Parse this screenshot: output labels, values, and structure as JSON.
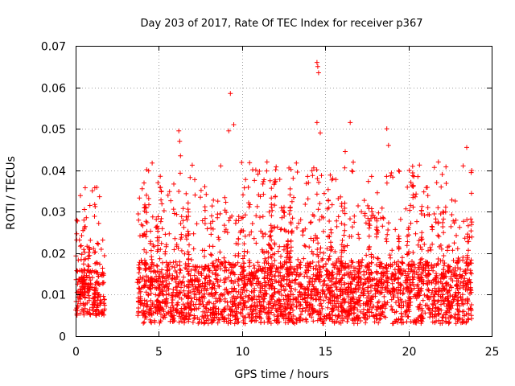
{
  "chart_data": {
    "type": "scatter",
    "title": "Day 203 of 2017, Rate Of TEC Index for receiver p367",
    "xlabel": "GPS time / hours",
    "ylabel": "ROTI / TECUs",
    "xlim": [
      0,
      25
    ],
    "ylim": [
      0,
      0.07
    ],
    "x_ticks": [
      0,
      5,
      10,
      15,
      20,
      25
    ],
    "x_tick_labels": [
      "0",
      "5",
      "10",
      "15",
      "20",
      "25"
    ],
    "y_ticks": [
      0,
      0.01,
      0.02,
      0.03,
      0.04,
      0.05,
      0.06,
      0.07
    ],
    "y_tick_labels": [
      "0",
      "0.01",
      "0.02",
      "0.03",
      "0.04",
      "0.05",
      "0.06",
      "0.07"
    ],
    "grid": true,
    "marker": "plus",
    "color": "#ff0000",
    "series": [
      {
        "segments": [
          {
            "x_start": 0.0,
            "x_end": 1.75,
            "typical_min": 0.005,
            "typical_max": 0.025,
            "peak": 0.037
          },
          {
            "x_start": 3.7,
            "x_end": 23.8,
            "typical_min": 0.003,
            "typical_max": 0.03,
            "peak": 0.042
          }
        ],
        "outliers": [
          {
            "x": 6.2,
            "y": 0.0495
          },
          {
            "x": 6.25,
            "y": 0.047
          },
          {
            "x": 6.3,
            "y": 0.0435
          },
          {
            "x": 9.3,
            "y": 0.0585
          },
          {
            "x": 9.2,
            "y": 0.0495
          },
          {
            "x": 9.5,
            "y": 0.051
          },
          {
            "x": 14.5,
            "y": 0.066
          },
          {
            "x": 14.55,
            "y": 0.065
          },
          {
            "x": 14.6,
            "y": 0.0635
          },
          {
            "x": 14.5,
            "y": 0.0515
          },
          {
            "x": 14.7,
            "y": 0.049
          },
          {
            "x": 16.5,
            "y": 0.0515
          },
          {
            "x": 18.7,
            "y": 0.05
          },
          {
            "x": 18.8,
            "y": 0.046
          },
          {
            "x": 23.5,
            "y": 0.0455
          },
          {
            "x": 11.5,
            "y": 0.042
          },
          {
            "x": 16.2,
            "y": 0.0445
          },
          {
            "x": 21.8,
            "y": 0.042
          }
        ]
      }
    ]
  }
}
